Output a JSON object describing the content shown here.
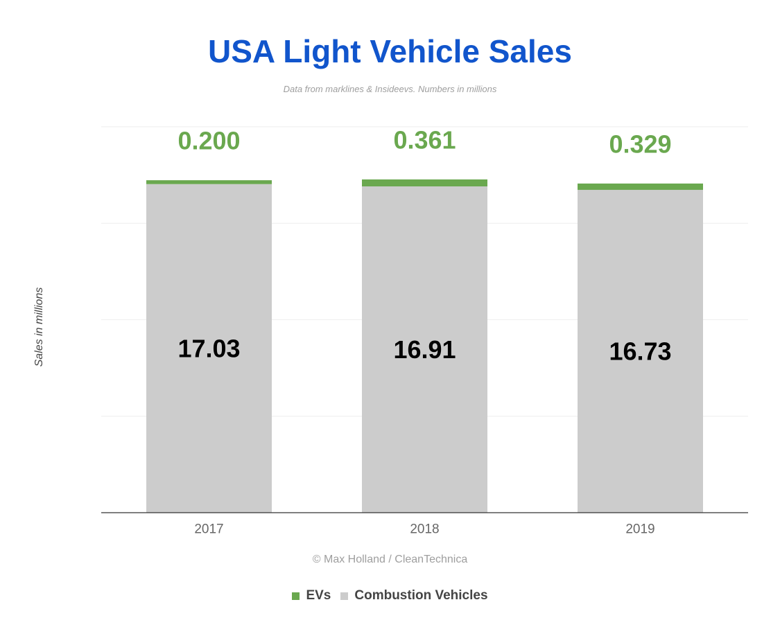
{
  "title": "USA Light Vehicle Sales",
  "subtitle": "Data from marklines & Insideevs. Numbers in millions",
  "credit": "© Max Holland / CleanTechnica",
  "colors": {
    "title": "#1155cc",
    "evs": "#6aa84f",
    "combustion": "#cccccc",
    "grid": "#eeeeee",
    "axis": "#333333"
  },
  "legend": [
    {
      "label": "EVs",
      "color": "#6aa84f"
    },
    {
      "label": "Combustion Vehicles",
      "color": "#cccccc"
    }
  ],
  "chart_data": {
    "type": "bar",
    "stacked": true,
    "title": "USA Light Vehicle Sales",
    "subtitle": "Data from marklines & Insideevs. Numbers in millions",
    "xlabel": "",
    "ylabel": "Sales in millions",
    "categories": [
      "2017",
      "2018",
      "2019"
    ],
    "series": [
      {
        "name": "Combustion Vehicles",
        "values": [
          17.03,
          16.91,
          16.73
        ],
        "labels": [
          "17.03",
          "16.91",
          "16.73"
        ],
        "color": "#cccccc"
      },
      {
        "name": "EVs",
        "values": [
          0.2,
          0.361,
          0.329
        ],
        "labels": [
          "0.200",
          "0.361",
          "0.329"
        ],
        "color": "#6aa84f"
      }
    ],
    "ylim": [
      0,
      20
    ],
    "grid": true,
    "legend_position": "bottom"
  }
}
